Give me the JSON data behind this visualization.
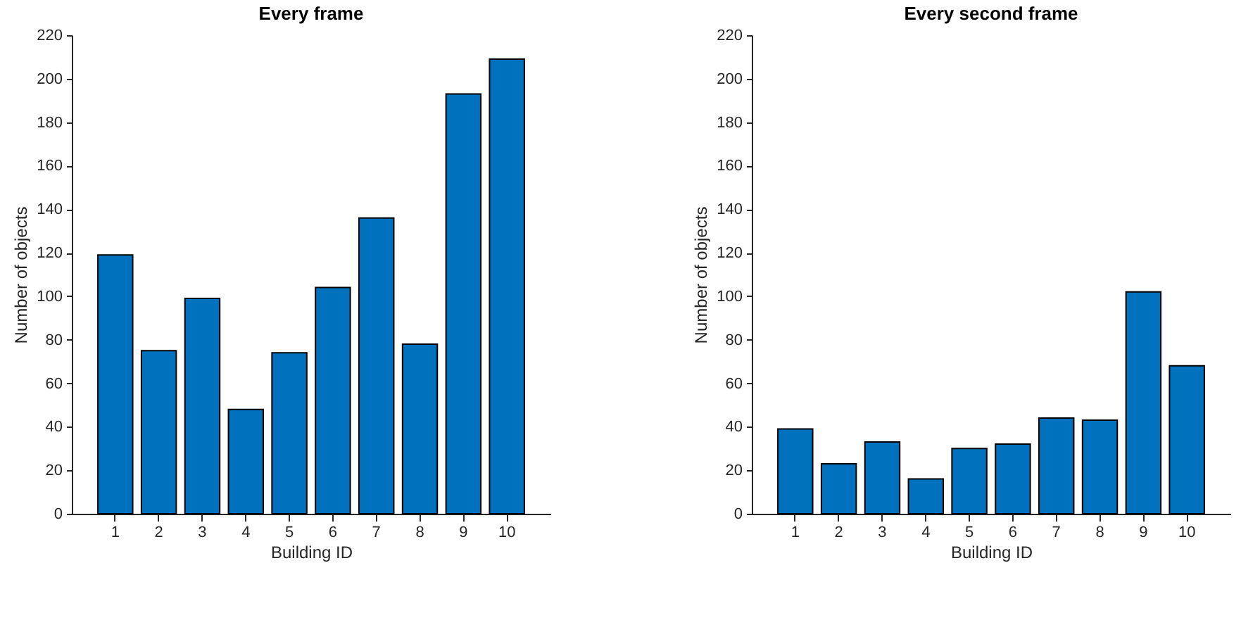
{
  "chart_data": [
    {
      "type": "bar",
      "title": "Every frame",
      "xlabel": "Building ID",
      "ylabel": "Number of objects",
      "categories": [
        "1",
        "2",
        "3",
        "4",
        "5",
        "6",
        "7",
        "8",
        "9",
        "10"
      ],
      "values": [
        119,
        75,
        99,
        48,
        74,
        104,
        136,
        78,
        193,
        209
      ],
      "color": "#0072bd",
      "ylim": [
        0,
        220
      ],
      "yticks": [
        0,
        20,
        40,
        60,
        80,
        100,
        120,
        140,
        160,
        180,
        200,
        220
      ]
    },
    {
      "type": "bar",
      "title": "Every second frame",
      "xlabel": "Building ID",
      "ylabel": "Number of objects",
      "categories": [
        "1",
        "2",
        "3",
        "4",
        "5",
        "6",
        "7",
        "8",
        "9",
        "10"
      ],
      "values": [
        39,
        23,
        33,
        16,
        30,
        32,
        44,
        43,
        102,
        68
      ],
      "color": "#0072bd",
      "ylim": [
        0,
        220
      ],
      "yticks": [
        0,
        20,
        40,
        60,
        80,
        100,
        120,
        140,
        160,
        180,
        200,
        220
      ]
    }
  ]
}
